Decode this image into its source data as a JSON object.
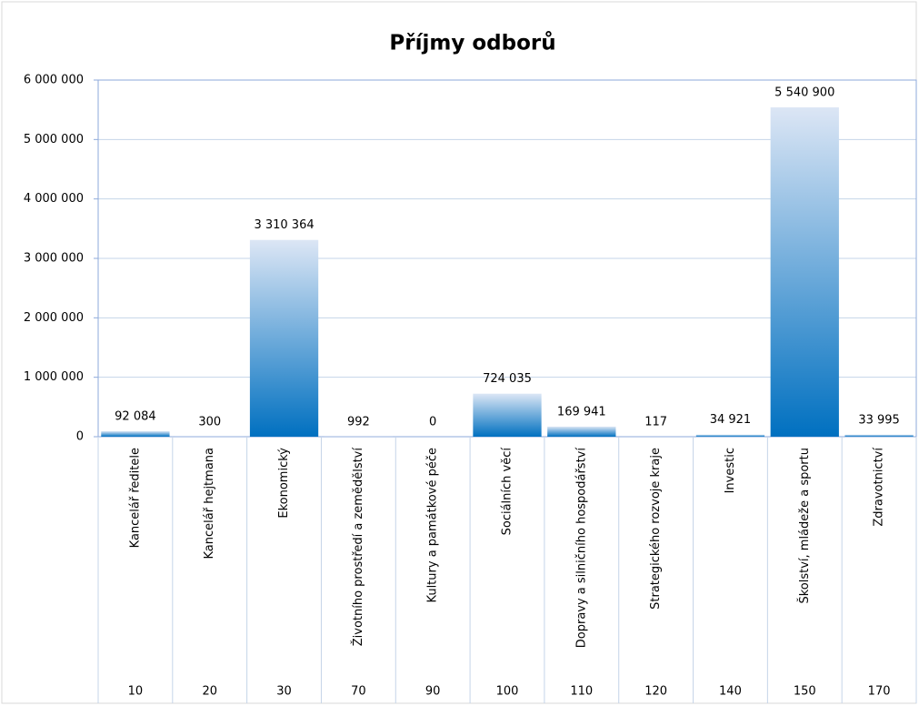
{
  "chart_data": {
    "type": "bar",
    "title": "Příjmy odborů",
    "categories": [
      "Kancelář ředitele",
      "Kancelář hejtmana",
      "Ekonomický",
      "Životního prostředí a zemědělství",
      "Kultury a památkové péče",
      "Sociálních věcí",
      "Dopravy a silničního hospodářství",
      "Strategického rozvoje kraje",
      "Investic",
      "Školství, mládeže a sportu",
      "Zdravotnictví"
    ],
    "category_codes": [
      10,
      20,
      30,
      70,
      90,
      100,
      110,
      120,
      140,
      150,
      170
    ],
    "values": [
      92084,
      300,
      3310364,
      992,
      0,
      724035,
      169941,
      117,
      34921,
      5540900,
      33995
    ],
    "value_labels": [
      "92 084",
      "300",
      "3 310 364",
      "992",
      "0",
      "724 035",
      "169 941",
      "117",
      "34 921",
      "5 540 900",
      "33 995"
    ],
    "color": "#0070c0",
    "ylim": [
      0,
      6000000
    ],
    "yticks": [
      0,
      {
        "value": 1000000,
        "label": "1 000 000"
      },
      {
        "value": 2000000,
        "label": "2 000 000"
      },
      {
        "value": 3000000,
        "label": "3 000 000"
      },
      {
        "value": 4000000,
        "label": "4 000 000"
      },
      {
        "value": 5000000,
        "label": "5 000 000"
      },
      {
        "value": 6000000,
        "label": "6 000 000"
      }
    ],
    "grid": true
  }
}
